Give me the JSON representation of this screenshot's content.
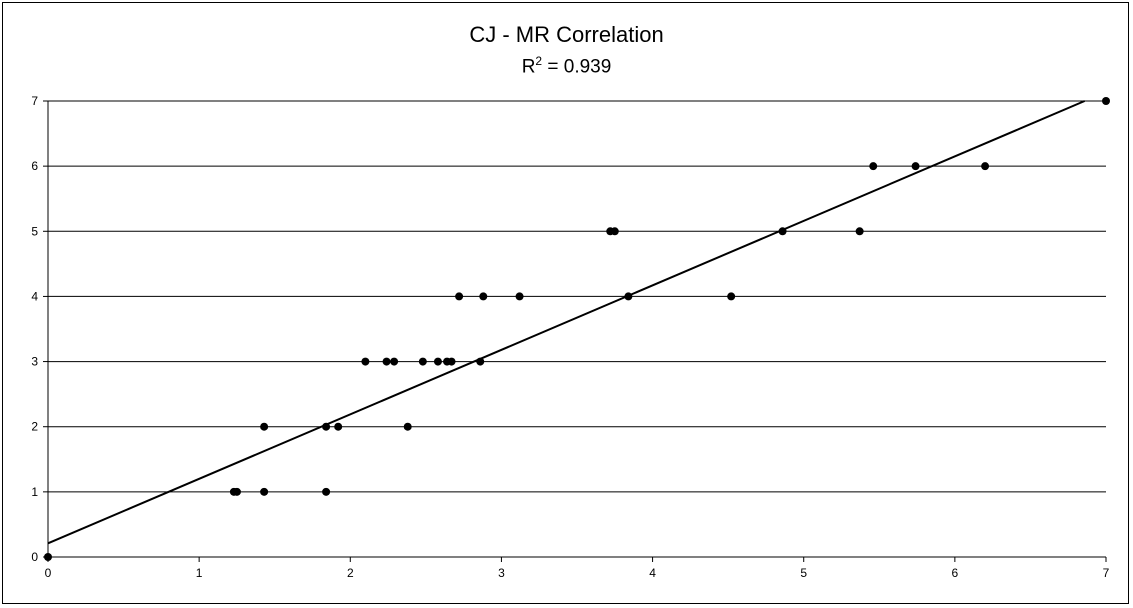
{
  "chart_data": {
    "type": "scatter",
    "title": "CJ - MR Correlation",
    "subtitle_prefix": "R",
    "subtitle_sup": "2",
    "subtitle_suffix": " = 0.939",
    "xlim": [
      0,
      7
    ],
    "ylim": [
      0,
      7
    ],
    "x_ticks": [
      "0",
      "1",
      "2",
      "3",
      "4",
      "5",
      "6",
      "7"
    ],
    "y_ticks": [
      "0",
      "1",
      "2",
      "3",
      "4",
      "5",
      "6",
      "7"
    ],
    "grid": "horizontal",
    "points": [
      [
        0,
        0
      ],
      [
        1.23,
        1
      ],
      [
        1.25,
        1
      ],
      [
        1.43,
        1
      ],
      [
        1.84,
        1
      ],
      [
        1.43,
        2
      ],
      [
        1.84,
        2
      ],
      [
        1.92,
        2
      ],
      [
        2.38,
        2
      ],
      [
        2.1,
        3
      ],
      [
        2.24,
        3
      ],
      [
        2.29,
        3
      ],
      [
        2.48,
        3
      ],
      [
        2.58,
        3
      ],
      [
        2.64,
        3
      ],
      [
        2.67,
        3
      ],
      [
        2.86,
        3
      ],
      [
        2.72,
        4
      ],
      [
        2.88,
        4
      ],
      [
        3.12,
        4
      ],
      [
        3.84,
        4
      ],
      [
        4.52,
        4
      ],
      [
        3.72,
        5
      ],
      [
        3.75,
        5
      ],
      [
        4.86,
        5
      ],
      [
        5.37,
        5
      ],
      [
        5.46,
        6
      ],
      [
        5.74,
        6
      ],
      [
        6.2,
        6
      ],
      [
        7,
        7
      ]
    ],
    "trendline": {
      "type": "linear",
      "slope": 0.99,
      "intercept": 0.21
    },
    "colors": {
      "marker": "#000000",
      "line": "#000000",
      "grid": "#000000"
    }
  }
}
